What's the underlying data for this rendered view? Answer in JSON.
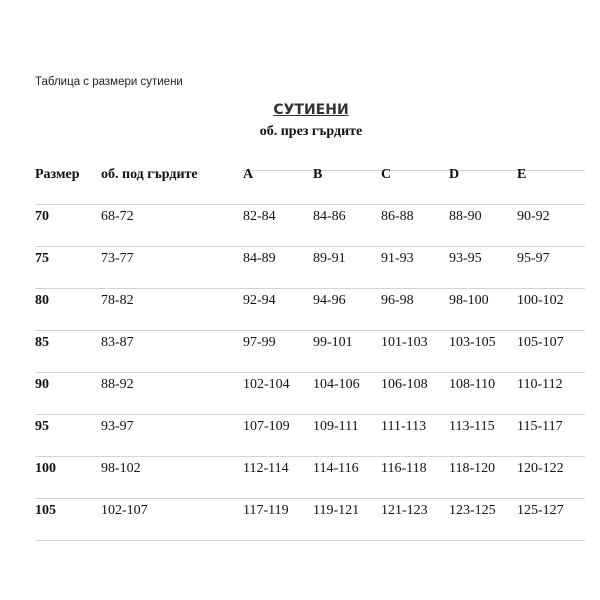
{
  "caption": "Таблица с размери сутиени",
  "title": "СУТИЕНИ",
  "subtitle": "об. през гърдите",
  "headers": [
    "Размер",
    "об. под гърдите",
    "A",
    "B",
    "C",
    "D",
    "E"
  ],
  "rows": [
    [
      "70",
      "68-72",
      "82-84",
      "84-86",
      "86-88",
      "88-90",
      "90-92"
    ],
    [
      "75",
      "73-77",
      "84-89",
      "89-91",
      "91-93",
      "93-95",
      "95-97"
    ],
    [
      "80",
      "78-82",
      "92-94",
      "94-96",
      "96-98",
      "98-100",
      "100-102"
    ],
    [
      "85",
      "83-87",
      "97-99",
      "99-101",
      "101-103",
      "103-105",
      "105-107"
    ],
    [
      "90",
      "88-92",
      "102-104",
      "104-106",
      "106-108",
      "108-110",
      "110-112"
    ],
    [
      "95",
      "93-97",
      "107-109",
      "109-111",
      "111-113",
      "113-115",
      "115-117"
    ],
    [
      "100",
      "98-102",
      "112-114",
      "114-116",
      "116-118",
      "118-120",
      "120-122"
    ],
    [
      "105",
      "102-107",
      "117-119",
      "119-121",
      "121-123",
      "123-125",
      "125-127"
    ]
  ]
}
